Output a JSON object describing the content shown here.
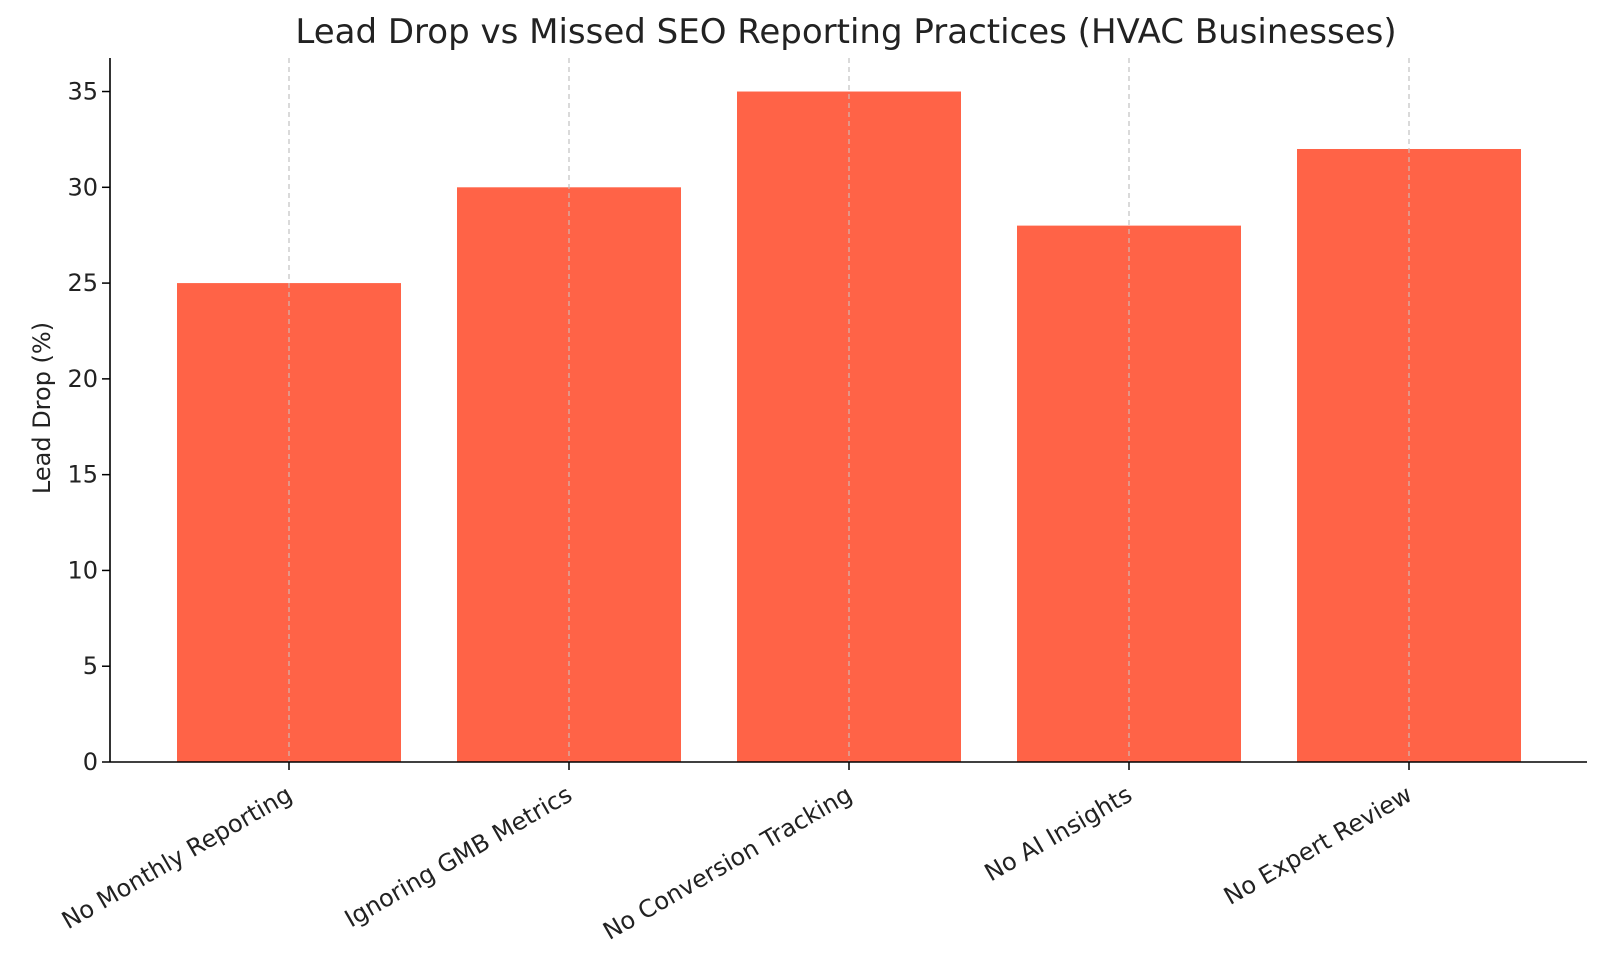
{
  "chart_data": {
    "type": "bar",
    "title": "Lead Drop vs Missed SEO Reporting Practices (HVAC Businesses)",
    "xlabel": "",
    "ylabel": "Lead Drop (%)",
    "categories": [
      "No Monthly Reporting",
      "Ignoring GMB Metrics",
      "No Conversion Tracking",
      "No AI Insights",
      "No Expert Review"
    ],
    "values": [
      25,
      30,
      35,
      28,
      32
    ],
    "ylim": [
      0,
      36.75
    ],
    "yticks": [
      0,
      5,
      10,
      15,
      20,
      25,
      30,
      35
    ],
    "grid": "vertical dashed lines at category ticks",
    "colors": {
      "bar": "#ff6347",
      "grid": "#c8c8c8",
      "axis": "#000000"
    }
  }
}
